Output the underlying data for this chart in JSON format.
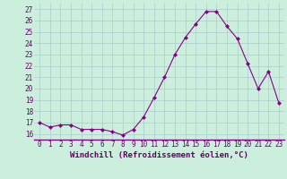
{
  "x": [
    0,
    1,
    2,
    3,
    4,
    5,
    6,
    7,
    8,
    9,
    10,
    11,
    12,
    13,
    14,
    15,
    16,
    17,
    18,
    19,
    20,
    21,
    22,
    23
  ],
  "y": [
    17.0,
    16.6,
    16.8,
    16.8,
    16.4,
    16.4,
    16.4,
    16.2,
    15.9,
    16.4,
    17.5,
    19.2,
    21.0,
    23.0,
    24.5,
    25.7,
    26.8,
    26.8,
    25.5,
    24.4,
    22.2,
    20.0,
    21.5,
    18.7
  ],
  "line_color": "#880088",
  "marker": "D",
  "marker_size": 2,
  "bg_color": "#cceedd",
  "grid_color": "#aacccc",
  "xlabel": "Windchill (Refroidissement éolien,°C)",
  "xlabel_fontsize": 6.5,
  "tick_fontsize": 5.5,
  "ylim": [
    15.5,
    27.5
  ],
  "xlim": [
    -0.5,
    23.5
  ],
  "yticks": [
    16,
    17,
    18,
    19,
    20,
    21,
    22,
    23,
    24,
    25,
    26,
    27
  ],
  "label_color": "#660066"
}
